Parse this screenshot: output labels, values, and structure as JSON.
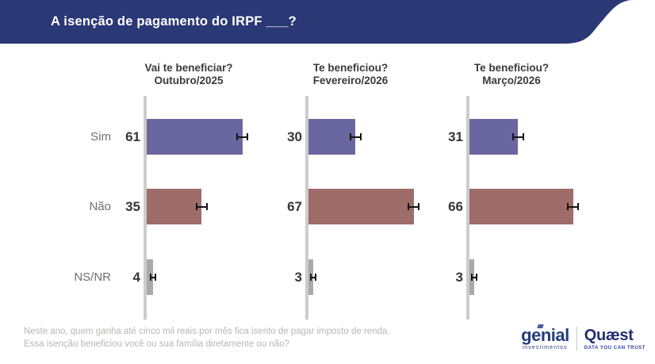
{
  "header": {
    "title": "A isenção de pagamento do IRPF ___?",
    "bg_color": "#2b3876"
  },
  "chart_data": {
    "type": "bar",
    "orientation": "horizontal",
    "categories": [
      "Sim",
      "Não",
      "NS/NR"
    ],
    "series": [
      {
        "name": "Vai te beneficiar?",
        "period": "Outubro/2025",
        "values": [
          61,
          35,
          4
        ]
      },
      {
        "name": "Te beneficiou?",
        "period": "Fevereiro/2026",
        "values": [
          30,
          67,
          3
        ]
      },
      {
        "name": "Te beneficiou?",
        "period": "Março/2026",
        "values": [
          31,
          66,
          3
        ]
      }
    ],
    "category_colors": [
      "#6a67a0",
      "#9e6c69",
      "#a9a9a9"
    ],
    "error_bars": true,
    "xlim": [
      0,
      100
    ],
    "grid": false,
    "legend": "none"
  },
  "footer": {
    "note_line1": "Neste ano, quem ganha até cinco mil reais por mês fica isento de pagar imposto de renda.",
    "note_line2": "Essa isenção beneficiou você ou sua família diretamente ou não?"
  },
  "logos": {
    "genial_name": "genial",
    "genial_sub": "investimentos",
    "quaest_name": "Quæst",
    "quaest_tagline": "DATA YOU CAN TRUST"
  }
}
